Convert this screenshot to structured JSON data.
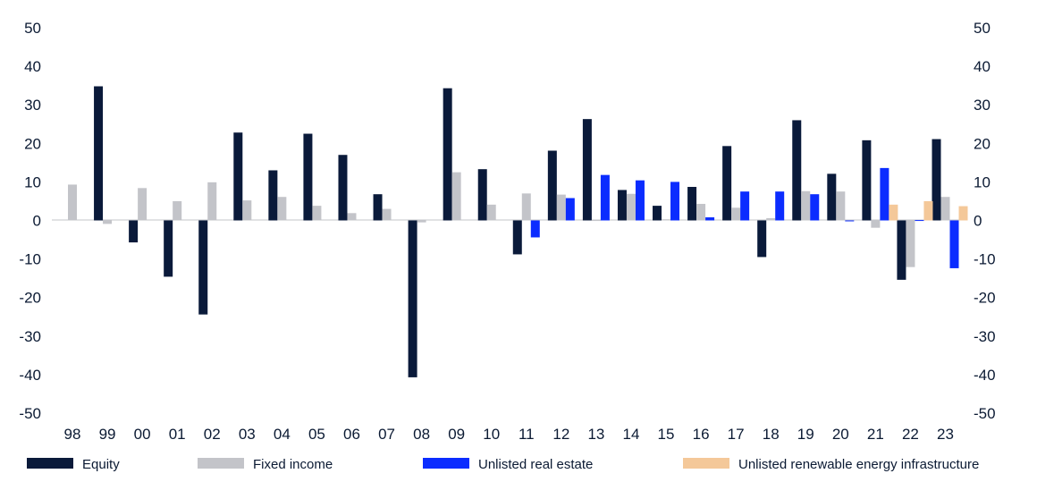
{
  "chart_data": {
    "type": "bar",
    "categories": [
      "98",
      "99",
      "00",
      "01",
      "02",
      "03",
      "04",
      "05",
      "06",
      "07",
      "08",
      "09",
      "10",
      "11",
      "12",
      "13",
      "14",
      "15",
      "16",
      "17",
      "18",
      "19",
      "20",
      "21",
      "22",
      "23"
    ],
    "series": [
      {
        "name": "Equity",
        "color": "#0a1a3a",
        "values": [
          null,
          34.8,
          -5.7,
          -14.6,
          -24.4,
          22.8,
          13.0,
          22.5,
          17.0,
          6.8,
          -40.7,
          34.3,
          13.3,
          -8.8,
          18.1,
          26.3,
          7.9,
          3.8,
          8.7,
          19.3,
          -9.5,
          26.0,
          12.1,
          20.8,
          -15.4,
          21.1
        ]
      },
      {
        "name": "Fixed income",
        "color": "#c3c4c9",
        "values": [
          9.3,
          -0.9,
          8.4,
          5.0,
          9.9,
          5.2,
          6.1,
          3.8,
          1.9,
          3.0,
          -0.5,
          12.5,
          4.1,
          7.0,
          6.7,
          0.1,
          6.9,
          0.3,
          4.3,
          3.3,
          0.6,
          7.6,
          7.5,
          -1.9,
          -12.1,
          6.1
        ]
      },
      {
        "name": "Unlisted real estate",
        "color": "#0b2cff",
        "values": [
          null,
          null,
          null,
          null,
          null,
          null,
          null,
          null,
          null,
          null,
          null,
          null,
          null,
          -4.4,
          5.8,
          11.8,
          10.4,
          10.0,
          0.8,
          7.5,
          7.5,
          6.8,
          -0.1,
          13.6,
          0.1,
          -12.4
        ]
      },
      {
        "name": "Unlisted renewable energy infrastructure",
        "color": "#f4c899",
        "values": [
          null,
          null,
          null,
          null,
          null,
          null,
          null,
          null,
          null,
          null,
          null,
          null,
          null,
          null,
          null,
          null,
          null,
          null,
          null,
          null,
          null,
          null,
          null,
          4.1,
          5.0,
          3.7
        ]
      }
    ],
    "y_ticks": [
      "50",
      "40",
      "30",
      "20",
      "10",
      "0",
      "-10",
      "-20",
      "-30",
      "-40",
      "-50"
    ],
    "ylim": [
      -50,
      50
    ],
    "grid": false,
    "legend": "bottom",
    "right_axis": true
  }
}
